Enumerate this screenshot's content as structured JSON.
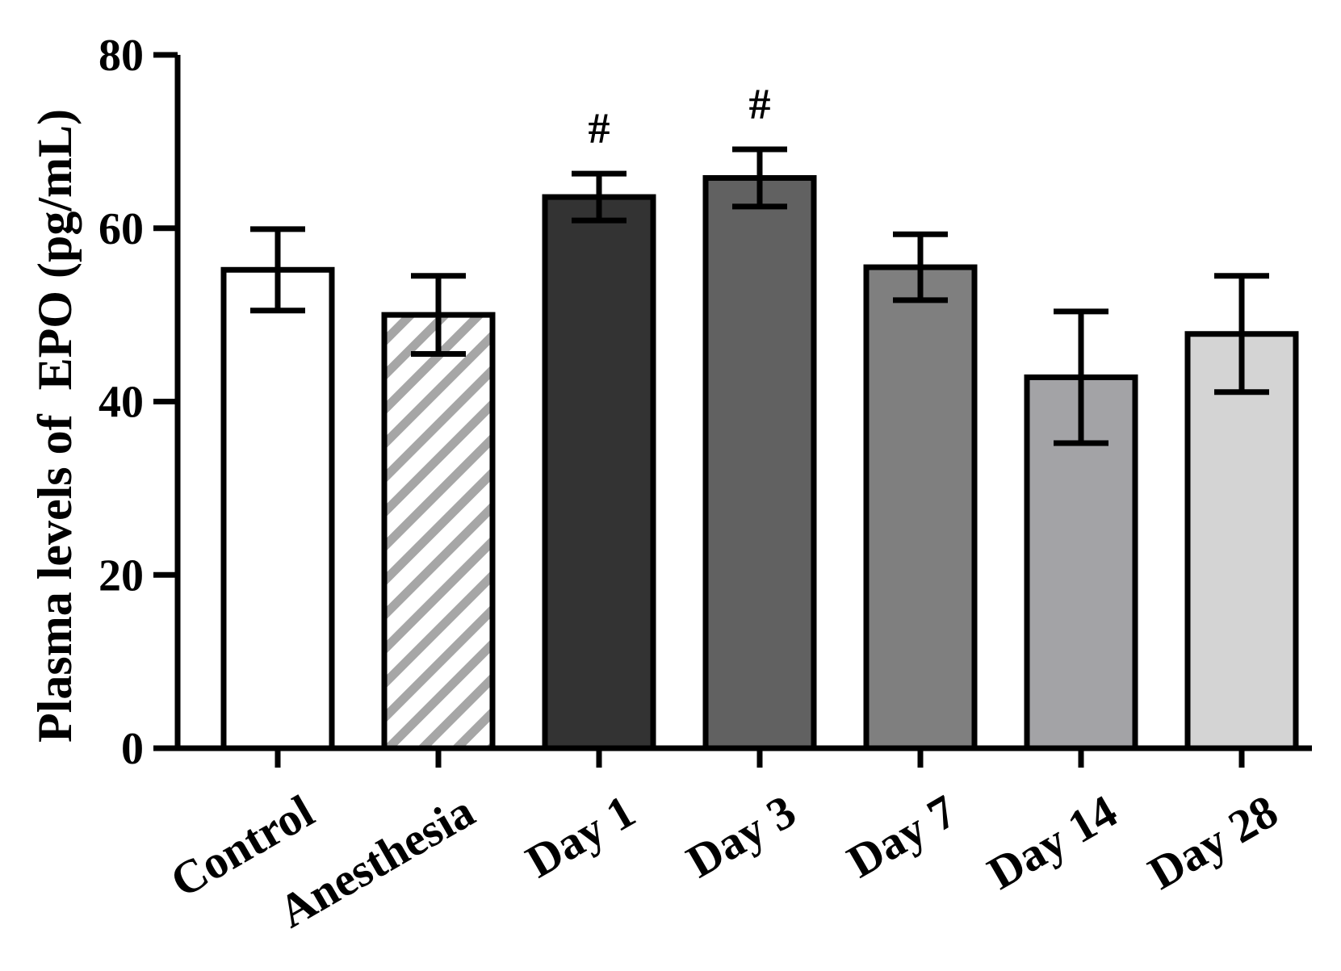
{
  "chart_data": {
    "type": "bar",
    "title": "",
    "xlabel": "",
    "ylabel": "Plasma levels of  EPO (pg/mL)",
    "ylim": [
      0,
      80
    ],
    "yticks": [
      "0",
      "20",
      "40",
      "60",
      "80"
    ],
    "grid": false,
    "categories": [
      "Control",
      "Anesthesia",
      "Day 1",
      "Day 3",
      "Day 7",
      "Day 14",
      "Day 28"
    ],
    "values": [
      55.2,
      50.0,
      63.6,
      65.8,
      55.5,
      42.8,
      47.8
    ],
    "errors": [
      4.7,
      4.5,
      2.7,
      3.3,
      3.8,
      7.6,
      6.7
    ],
    "fills": [
      "#ffffff",
      "hatch",
      "#333333",
      "#616161",
      "#7f7f7f",
      "#a3a3a6",
      "#d4d4d4"
    ],
    "annotations": [
      "",
      "",
      "#",
      "#",
      "",
      "",
      ""
    ]
  }
}
